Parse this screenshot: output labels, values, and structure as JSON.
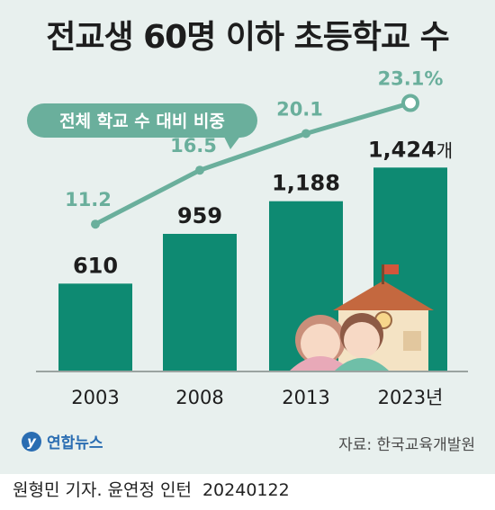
{
  "title": "전교생 60명 이하 초등학교 수",
  "chart_data": {
    "type": "bar",
    "categories": [
      "2003",
      "2008",
      "2013",
      "2023년"
    ],
    "series": [
      {
        "name": "",
        "values": [
          610,
          959,
          1188,
          1424
        ]
      },
      {
        "name": "전체 학교 수 대비 비중",
        "type": "line",
        "values": [
          11.2,
          16.5,
          20.1,
          23.1
        ]
      }
    ],
    "bar_labels": [
      "610",
      "959",
      "1,188",
      "1,424"
    ],
    "bar_unit": "개",
    "line_labels": [
      "11.2",
      "16.5",
      "20.1",
      "23.1%"
    ],
    "line_label": "전체 학교 수 대비 비중",
    "grid": false,
    "colors": {
      "bar": "#0e8a72",
      "line": "#6aaf9c",
      "line_text": "#6aaf9c"
    }
  },
  "logo": {
    "mark": "y",
    "text": "연합뉴스"
  },
  "source": "자료: 한국교육개발원",
  "credit": {
    "text": "원형민 기자. 윤연정 인턴",
    "date": "20240122"
  }
}
